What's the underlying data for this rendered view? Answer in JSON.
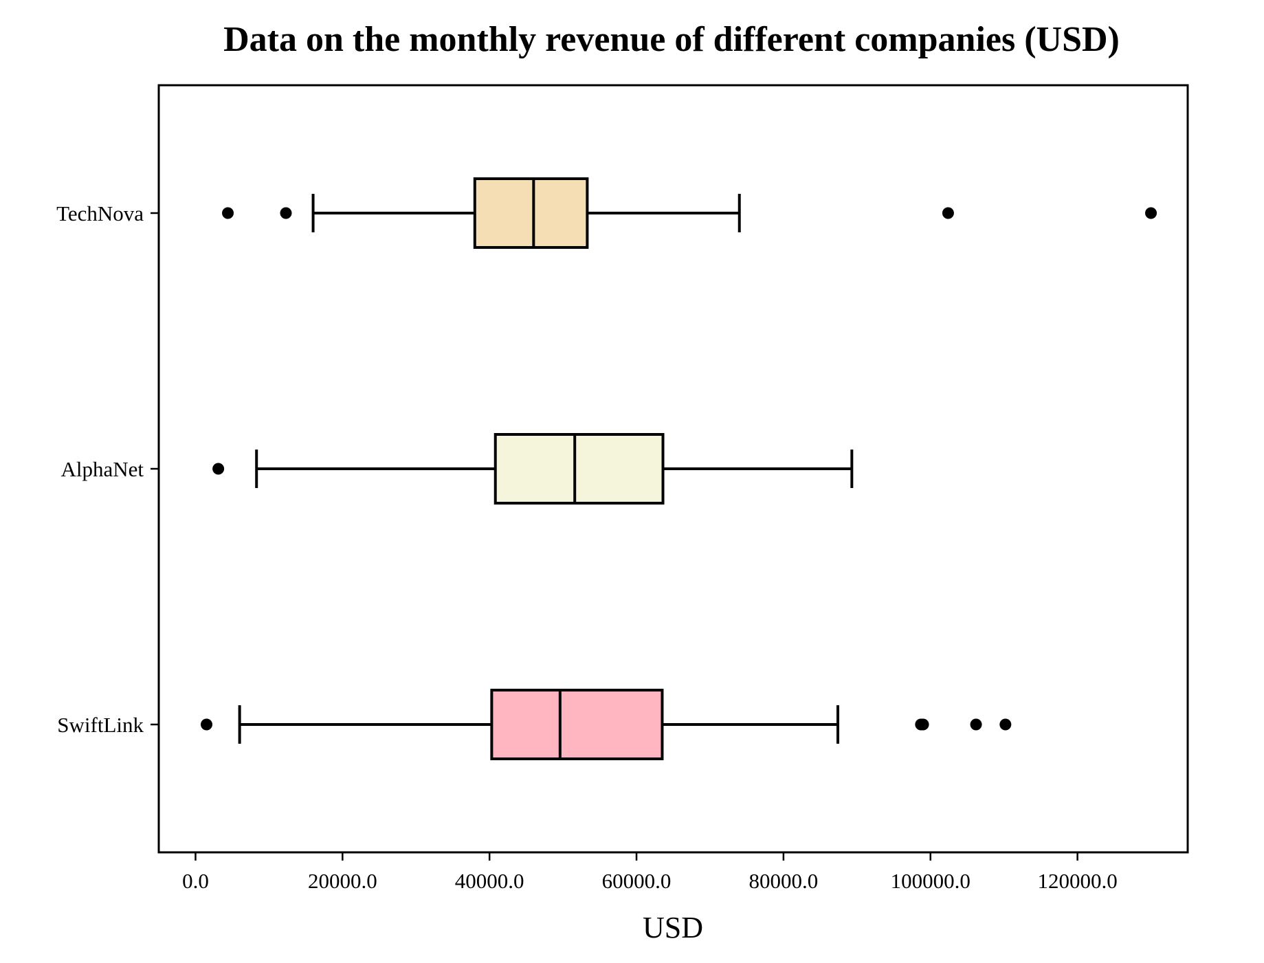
{
  "chart_data": {
    "type": "boxplot",
    "orientation": "horizontal",
    "title": "Data on the monthly revenue of different companies (USD)",
    "xlabel": "USD",
    "ylabel": "",
    "xlim": [
      -5000,
      135000
    ],
    "xticks": [
      0,
      20000,
      40000,
      60000,
      80000,
      100000,
      120000
    ],
    "xtick_labels": [
      "0.0",
      "20000.0",
      "40000.0",
      "60000.0",
      "80000.0",
      "100000.0",
      "120000.0"
    ],
    "grid": false,
    "legend": "none",
    "categories": [
      "TechNova",
      "AlphaNet",
      "SwiftLink"
    ],
    "series": [
      {
        "name": "TechNova",
        "color": "#F5DEB3",
        "whisker_low": 16000,
        "q1": 38000,
        "median": 46000,
        "q3": 53300,
        "whisker_high": 74000,
        "outliers": [
          4400,
          12300,
          102400,
          130000
        ]
      },
      {
        "name": "AlphaNet",
        "color": "#F5F5DC",
        "whisker_low": 8300,
        "q1": 40800,
        "median": 51600,
        "q3": 63600,
        "whisker_high": 89300,
        "outliers": [
          3100
        ]
      },
      {
        "name": "SwiftLink",
        "color": "#FFB6C1",
        "whisker_low": 6000,
        "q1": 40300,
        "median": 49600,
        "q3": 63500,
        "whisker_high": 87400,
        "outliers": [
          1500,
          98700,
          99000,
          106200,
          110200
        ]
      }
    ]
  }
}
